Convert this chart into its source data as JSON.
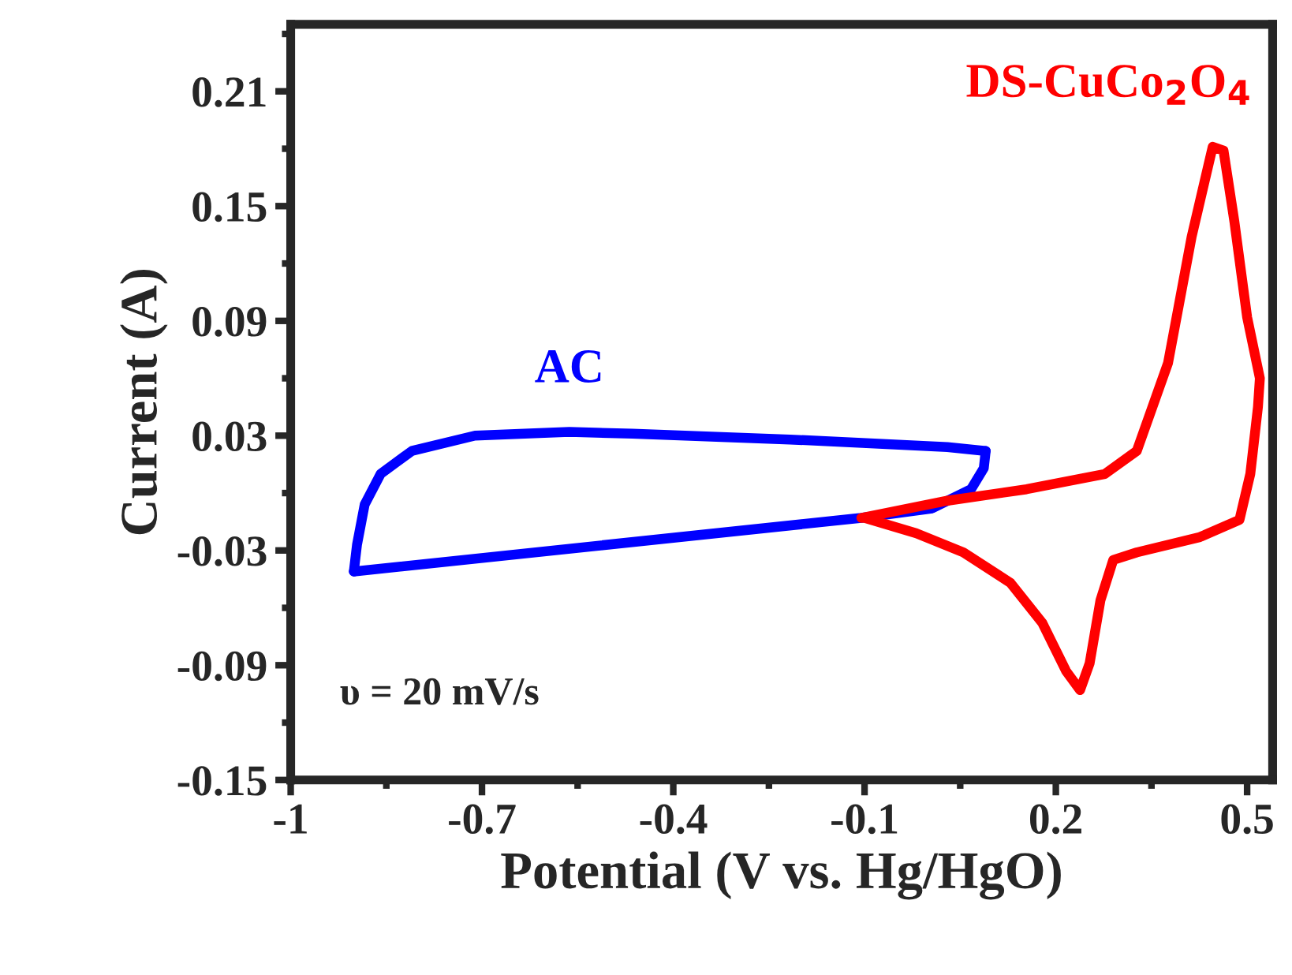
{
  "chart_data": {
    "type": "line",
    "xlabel": "Potential (V vs. Hg/HgO)",
    "ylabel": "Current (A)",
    "xlim": [
      -1,
      0.54
    ],
    "xticks": [
      -1,
      -0.7,
      -0.4,
      -0.1,
      0.2,
      0.5
    ],
    "ylim": [
      -0.15,
      0.245
    ],
    "yticks": [
      -0.15,
      -0.09,
      -0.03,
      0.03,
      0.09,
      0.15,
      0.21
    ],
    "grid": false,
    "legend": false,
    "marker": "none",
    "line_style": "solid",
    "annotations": [
      "υ = 20 mV/s"
    ],
    "series": [
      {
        "name": "AC",
        "color": "#0000ff",
        "x": [
          -0.901,
          -0.896,
          -0.884,
          -0.859,
          -0.81,
          -0.711,
          -0.563,
          -0.464,
          -0.217,
          0.03,
          0.09
        ],
        "values": [
          -0.041,
          -0.027,
          -0.006,
          0.01,
          0.022,
          0.03,
          0.032,
          0.031,
          0.028,
          0.024,
          0.022
        ]
      },
      {
        "color": "#0000ff",
        "x": [
          -0.901,
          -0.105,
          0.006,
          0.067,
          0.087,
          0.09
        ],
        "values": [
          -0.041,
          -0.013,
          -0.008,
          0.002,
          0.013,
          0.022
        ]
      },
      {
        "name": "DS-CuCo$_{2}$O$_{4}$",
        "color": "#ff0000",
        "x": [
          -0.105,
          0.03,
          0.154,
          0.277,
          0.327,
          0.376,
          0.413,
          0.446,
          0.463,
          0.48,
          0.5,
          0.52,
          0.517,
          0.505,
          0.488,
          0.426,
          0.327,
          0.29,
          0.27,
          0.253,
          0.238,
          0.216,
          0.179,
          0.129,
          0.055,
          -0.019,
          -0.1
        ],
        "values": [
          -0.013,
          -0.004,
          0.002,
          0.01,
          0.022,
          0.068,
          0.134,
          0.181,
          0.179,
          0.142,
          0.092,
          0.06,
          0.045,
          0.01,
          -0.014,
          -0.023,
          -0.031,
          -0.035,
          -0.056,
          -0.089,
          -0.103,
          -0.093,
          -0.068,
          -0.047,
          -0.031,
          -0.021,
          -0.013
        ]
      }
    ]
  }
}
